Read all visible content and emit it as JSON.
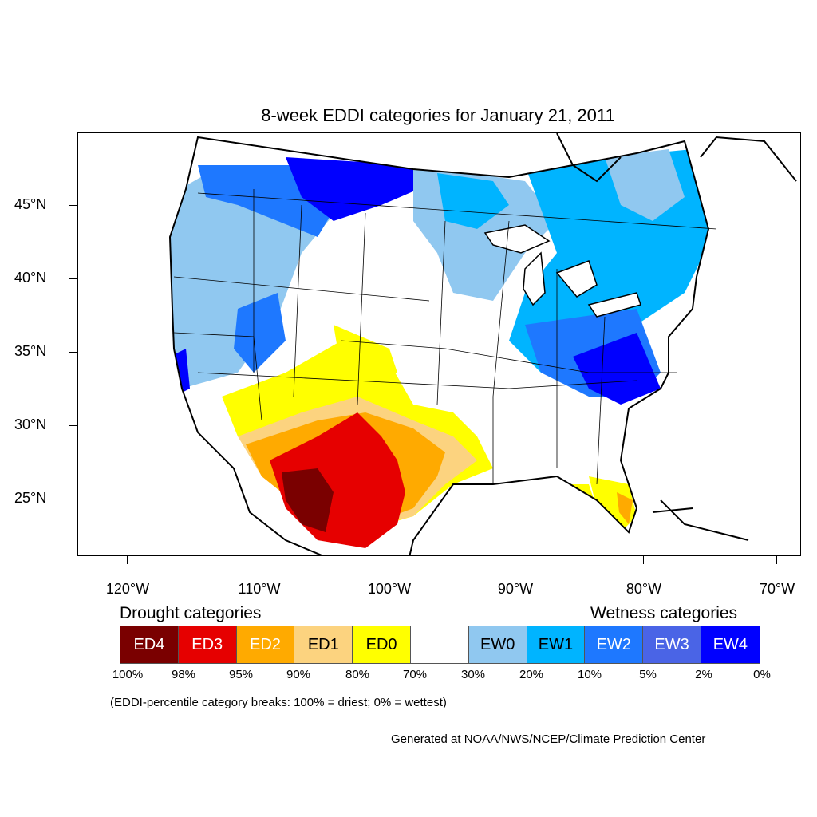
{
  "title": "8-week EDDI categories for January 21, 2011",
  "lat_labels": [
    "45°N",
    "40°N",
    "35°N",
    "30°N",
    "25°N"
  ],
  "lon_labels": [
    "120°W",
    "110°W",
    "100°W",
    "90°W",
    "80°W",
    "70°W"
  ],
  "drought_heading": "Drought categories",
  "wetness_heading": "Wetness categories",
  "legend": [
    {
      "label": "ED4",
      "color": "#7a0000",
      "text_color": "#ffffff"
    },
    {
      "label": "ED3",
      "color": "#e60000",
      "text_color": "#ffffff"
    },
    {
      "label": "ED2",
      "color": "#ffaa00",
      "text_color": "#ffffff"
    },
    {
      "label": "ED1",
      "color": "#fcd37f",
      "text_color": "#000000"
    },
    {
      "label": "ED0",
      "color": "#ffff00",
      "text_color": "#000000"
    },
    {
      "label": "",
      "color": "#ffffff",
      "text_color": "#000000"
    },
    {
      "label": "EW0",
      "color": "#90c8f0",
      "text_color": "#000000"
    },
    {
      "label": "EW1",
      "color": "#00b4ff",
      "text_color": "#000000"
    },
    {
      "label": "EW2",
      "color": "#1e78ff",
      "text_color": "#ffffff"
    },
    {
      "label": "EW3",
      "color": "#4a64e6",
      "text_color": "#ffffff"
    },
    {
      "label": "EW4",
      "color": "#0000ff",
      "text_color": "#ffffff"
    }
  ],
  "percentiles": [
    "100%",
    "98%",
    "95%",
    "90%",
    "80%",
    "70%",
    "30%",
    "20%",
    "10%",
    "5%",
    "2%",
    "0%"
  ],
  "note": "(EDDI-percentile category breaks: 100% = driest; 0% = wettest)",
  "credit": "Generated at NOAA/NWS/NCEP/Climate Prediction Center"
}
